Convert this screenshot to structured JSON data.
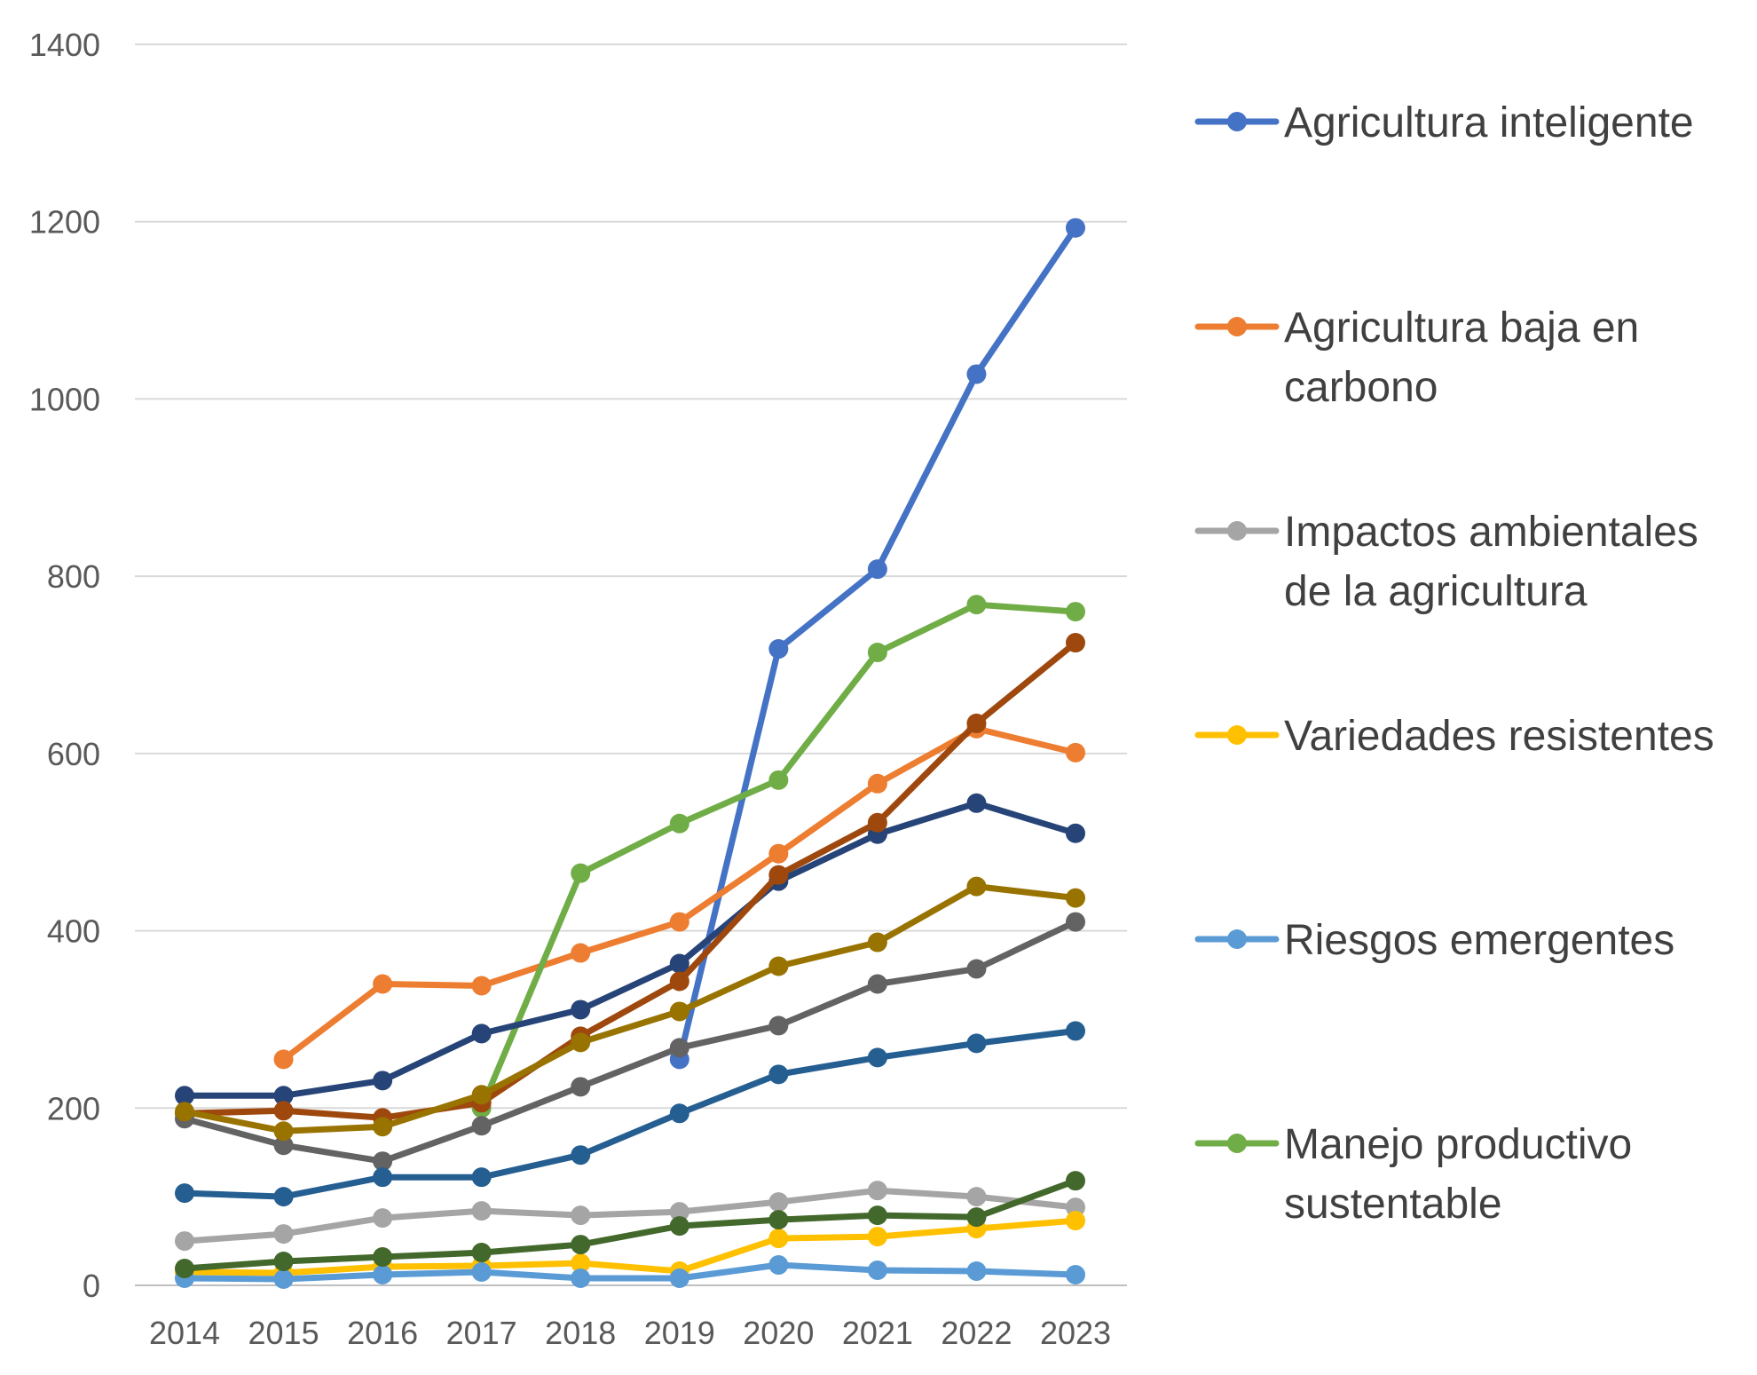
{
  "chart_data": {
    "type": "line",
    "x": [
      "2014",
      "2015",
      "2016",
      "2017",
      "2018",
      "2019",
      "2020",
      "2021",
      "2022",
      "2023"
    ],
    "ylim": [
      0,
      1400
    ],
    "yticks": [
      "0",
      "200",
      "400",
      "600",
      "800",
      "1000",
      "1200",
      "1400"
    ],
    "grid": "horizontal",
    "legend_position": "right",
    "legend": [
      {
        "lines": [
          "Agricultura inteligente"
        ],
        "color": "#4472C4"
      },
      {
        "lines": [
          "Agricultura baja en",
          "carbono"
        ],
        "color": "#ED7D31"
      },
      {
        "lines": [
          "Impactos ambientales",
          "de la agricultura"
        ],
        "color": "#A5A5A5"
      },
      {
        "lines": [
          "Variedades resistentes"
        ],
        "color": "#FFC000"
      },
      {
        "lines": [
          "Riesgos emergentes"
        ],
        "color": "#5B9BD5"
      },
      {
        "lines": [
          "Manejo productivo",
          "sustentable"
        ],
        "color": "#70AD47"
      }
    ],
    "series": [
      {
        "name": "Agricultura inteligente",
        "color": "#4472C4",
        "values": [
          null,
          null,
          null,
          null,
          null,
          255,
          718,
          808,
          1028,
          1193
        ]
      },
      {
        "name": "Agricultura baja en carbono",
        "color": "#ED7D31",
        "values": [
          null,
          255,
          340,
          338,
          375,
          410,
          487,
          566,
          628,
          601
        ]
      },
      {
        "name": "Impactos ambientales de la agricultura",
        "color": "#A5A5A5",
        "values": [
          50,
          58,
          76,
          84,
          79,
          83,
          94,
          107,
          100,
          88
        ]
      },
      {
        "name": "Variedades resistentes",
        "color": "#FFC000",
        "values": [
          15,
          14,
          21,
          22,
          25,
          16,
          53,
          55,
          64,
          73
        ]
      },
      {
        "name": "Riesgos emergentes",
        "color": "#5B9BD5",
        "values": [
          8,
          7,
          12,
          15,
          8,
          8,
          23,
          17,
          16,
          12
        ]
      },
      {
        "name": "Manejo productivo sustentable",
        "color": "#70AD47",
        "values": [
          null,
          null,
          null,
          200,
          465,
          521,
          570,
          714,
          768,
          760
        ]
      },
      {
        "color": "#264478",
        "values": [
          214,
          214,
          231,
          284,
          311,
          363,
          456,
          509,
          544,
          510
        ]
      },
      {
        "color": "#9E480E",
        "values": [
          194,
          197,
          189,
          206,
          281,
          343,
          463,
          522,
          634,
          725
        ]
      },
      {
        "color": "#636363",
        "values": [
          188,
          158,
          140,
          180,
          224,
          268,
          293,
          340,
          357,
          410
        ]
      },
      {
        "color": "#997300",
        "values": [
          196,
          174,
          179,
          215,
          274,
          309,
          360,
          387,
          450,
          437
        ]
      },
      {
        "color": "#255E91",
        "values": [
          104,
          100,
          122,
          122,
          147,
          194,
          238,
          257,
          273,
          287
        ]
      },
      {
        "color": "#43682B",
        "values": [
          19,
          27,
          32,
          37,
          46,
          67,
          74,
          79,
          77,
          118
        ]
      }
    ]
  }
}
